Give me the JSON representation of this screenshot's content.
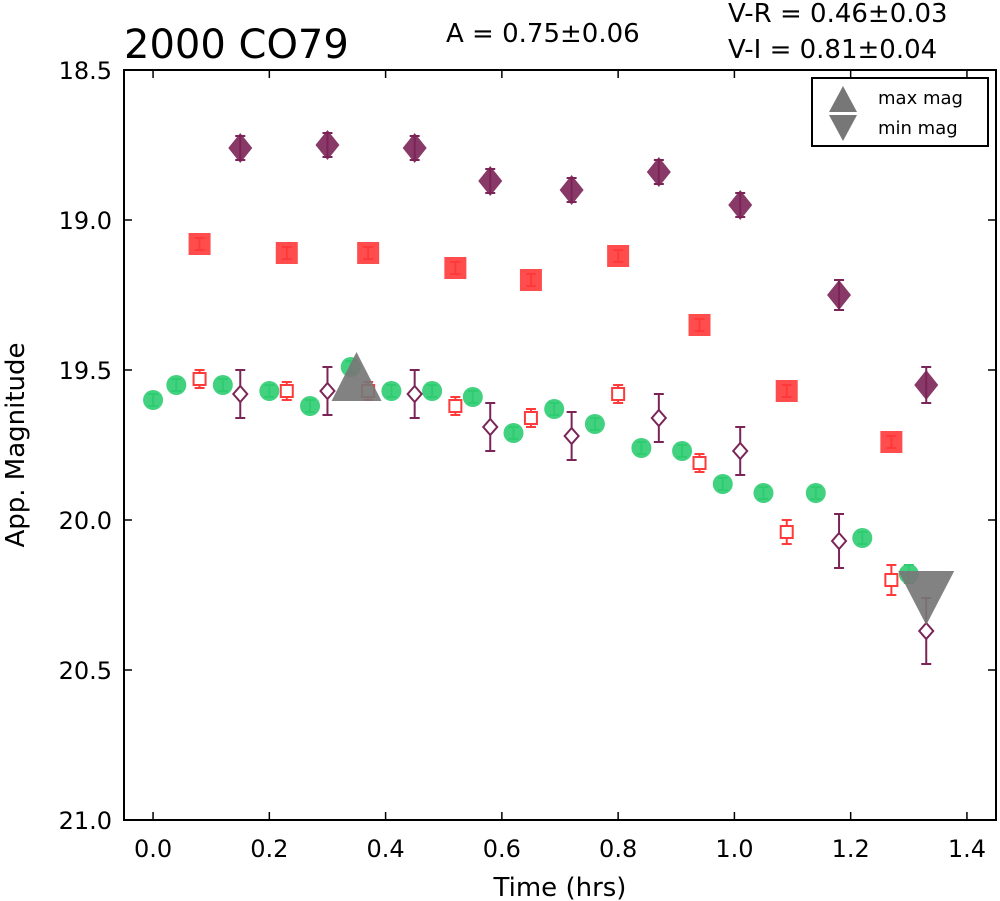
{
  "chart_data": {
    "type": "scatter",
    "title": "2000 CO79",
    "xlabel": "Time (hrs)",
    "ylabel": "App. Magnitude",
    "xlim": [
      -0.05,
      1.45
    ],
    "ylim": [
      21.0,
      18.5
    ],
    "y_inverted": true,
    "grid": false,
    "x_ticks": [
      "0.0",
      "0.2",
      "0.4",
      "0.6",
      "0.8",
      "1.0",
      "1.2",
      "1.4"
    ],
    "y_ticks": [
      "18.5",
      "19.0",
      "19.5",
      "20.0",
      "20.5",
      "21.0"
    ],
    "annotations": {
      "amplitude": "A  = 0.75±0.06",
      "vr": "V-R = 0.46±0.03",
      "vi": "V-I  = 0.81±0.04"
    },
    "legend": {
      "placement": "top-right",
      "entries": [
        {
          "label": "max mag",
          "marker": "triangle-up"
        },
        {
          "label": "min mag",
          "marker": "triangle-down"
        }
      ]
    },
    "series": [
      {
        "marker": "circle",
        "filled": true,
        "color": "#2ecc71",
        "points": [
          {
            "x": 0.0,
            "y": 19.6,
            "err": 0.02
          },
          {
            "x": 0.04,
            "y": 19.55,
            "err": 0.02
          },
          {
            "x": 0.12,
            "y": 19.55,
            "err": 0.02
          },
          {
            "x": 0.2,
            "y": 19.57,
            "err": 0.02
          },
          {
            "x": 0.27,
            "y": 19.62,
            "err": 0.02
          },
          {
            "x": 0.34,
            "y": 19.49,
            "err": 0.02
          },
          {
            "x": 0.41,
            "y": 19.57,
            "err": 0.02
          },
          {
            "x": 0.48,
            "y": 19.57,
            "err": 0.02
          },
          {
            "x": 0.55,
            "y": 19.59,
            "err": 0.02
          },
          {
            "x": 0.62,
            "y": 19.71,
            "err": 0.02
          },
          {
            "x": 0.69,
            "y": 19.63,
            "err": 0.02
          },
          {
            "x": 0.76,
            "y": 19.68,
            "err": 0.02
          },
          {
            "x": 0.84,
            "y": 19.76,
            "err": 0.02
          },
          {
            "x": 0.91,
            "y": 19.77,
            "err": 0.02
          },
          {
            "x": 0.98,
            "y": 19.88,
            "err": 0.02
          },
          {
            "x": 1.05,
            "y": 19.91,
            "err": 0.02
          },
          {
            "x": 1.14,
            "y": 19.91,
            "err": 0.02
          },
          {
            "x": 1.22,
            "y": 20.06,
            "err": 0.02
          },
          {
            "x": 1.3,
            "y": 20.18,
            "err": 0.03
          }
        ]
      },
      {
        "marker": "square",
        "filled": true,
        "color": "#ff3a3a",
        "points": [
          {
            "x": 0.08,
            "y": 19.08,
            "err": 0.02
          },
          {
            "x": 0.23,
            "y": 19.11,
            "err": 0.02
          },
          {
            "x": 0.37,
            "y": 19.11,
            "err": 0.02
          },
          {
            "x": 0.52,
            "y": 19.16,
            "err": 0.02
          },
          {
            "x": 0.65,
            "y": 19.2,
            "err": 0.02
          },
          {
            "x": 0.8,
            "y": 19.12,
            "err": 0.02
          },
          {
            "x": 0.94,
            "y": 19.35,
            "err": 0.02
          },
          {
            "x": 1.09,
            "y": 19.57,
            "err": 0.02
          },
          {
            "x": 1.27,
            "y": 19.74,
            "err": 0.02
          }
        ]
      },
      {
        "marker": "diamond",
        "filled": true,
        "color": "#7b2457",
        "points": [
          {
            "x": 0.15,
            "y": 18.76,
            "err": 0.04
          },
          {
            "x": 0.3,
            "y": 18.75,
            "err": 0.04
          },
          {
            "x": 0.45,
            "y": 18.76,
            "err": 0.04
          },
          {
            "x": 0.58,
            "y": 18.87,
            "err": 0.04
          },
          {
            "x": 0.72,
            "y": 18.9,
            "err": 0.04
          },
          {
            "x": 0.87,
            "y": 18.84,
            "err": 0.04
          },
          {
            "x": 1.01,
            "y": 18.95,
            "err": 0.04
          },
          {
            "x": 1.18,
            "y": 19.25,
            "err": 0.05
          },
          {
            "x": 1.33,
            "y": 19.55,
            "err": 0.06
          }
        ]
      },
      {
        "marker": "square",
        "filled": false,
        "color": "#ff3a3a",
        "points": [
          {
            "x": 0.08,
            "y": 19.53,
            "err": 0.03
          },
          {
            "x": 0.23,
            "y": 19.57,
            "err": 0.03
          },
          {
            "x": 0.37,
            "y": 19.57,
            "err": 0.03
          },
          {
            "x": 0.52,
            "y": 19.62,
            "err": 0.03
          },
          {
            "x": 0.65,
            "y": 19.66,
            "err": 0.03
          },
          {
            "x": 0.8,
            "y": 19.58,
            "err": 0.03
          },
          {
            "x": 0.94,
            "y": 19.81,
            "err": 0.03
          },
          {
            "x": 1.09,
            "y": 20.04,
            "err": 0.04
          },
          {
            "x": 1.27,
            "y": 20.2,
            "err": 0.05
          }
        ]
      },
      {
        "marker": "diamond",
        "filled": false,
        "color": "#7b2457",
        "points": [
          {
            "x": 0.15,
            "y": 19.58,
            "err": 0.08
          },
          {
            "x": 0.3,
            "y": 19.57,
            "err": 0.08
          },
          {
            "x": 0.45,
            "y": 19.58,
            "err": 0.08
          },
          {
            "x": 0.58,
            "y": 19.69,
            "err": 0.08
          },
          {
            "x": 0.72,
            "y": 19.72,
            "err": 0.08
          },
          {
            "x": 0.87,
            "y": 19.66,
            "err": 0.08
          },
          {
            "x": 1.01,
            "y": 19.77,
            "err": 0.08
          },
          {
            "x": 1.18,
            "y": 20.07,
            "err": 0.09
          },
          {
            "x": 1.33,
            "y": 20.37,
            "err": 0.11
          }
        ]
      }
    ],
    "extrema": [
      {
        "label": "max mag",
        "marker": "triangle-up",
        "x": 0.35,
        "y": 19.53,
        "color": "#777777"
      },
      {
        "label": "min mag",
        "marker": "triangle-down",
        "x": 1.33,
        "y": 20.26,
        "color": "#777777"
      }
    ]
  }
}
